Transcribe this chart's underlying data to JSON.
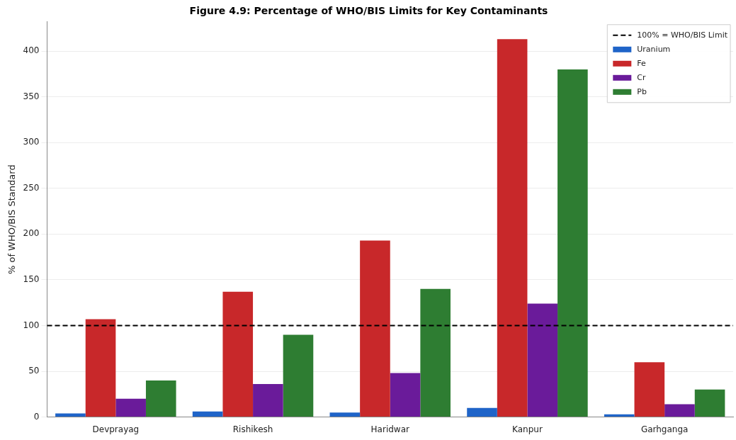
{
  "chart_data": {
    "type": "bar",
    "title": "Figure 4.9: Percentage of WHO/BIS Limits for Key Contaminants",
    "ylabel": "% of WHO/BIS Standard",
    "categories": [
      "Devprayag",
      "Rishikesh",
      "Haridwar",
      "Kanpur",
      "Garhganga"
    ],
    "series": [
      {
        "name": "Uranium",
        "color": "#1f64c8",
        "values": [
          4,
          6,
          5,
          10,
          3
        ]
      },
      {
        "name": "Fe",
        "color": "#c8282a",
        "values": [
          107,
          137,
          193,
          413,
          60
        ]
      },
      {
        "name": "Cr",
        "color": "#6a1b9a",
        "values": [
          20,
          36,
          48,
          124,
          14
        ]
      },
      {
        "name": "Pb",
        "color": "#2e7d32",
        "values": [
          40,
          90,
          140,
          380,
          30
        ]
      }
    ],
    "ylim": [
      0,
      432
    ],
    "yticks": [
      0,
      50,
      100,
      150,
      200,
      250,
      300,
      350,
      400
    ],
    "grid": "y",
    "legend": "top right",
    "ref_lines": [
      {
        "axis": "y",
        "value": 100,
        "label": "100% = WHO/BIS Limit",
        "color": "#000000",
        "line_style": "dashed"
      }
    ]
  }
}
